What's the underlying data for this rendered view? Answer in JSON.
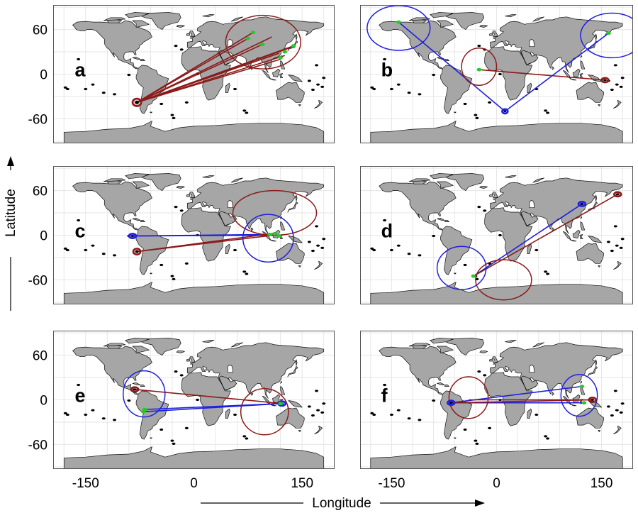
{
  "figure": {
    "x_axis_title": "Longitude",
    "y_axis_title": "Latitude",
    "x_tick_labels": [
      "-150",
      "0",
      "150"
    ],
    "y_tick_labels": [
      "60",
      "0",
      "-60"
    ],
    "x_ticks": [
      -150,
      0,
      150
    ],
    "y_ticks": [
      60,
      0,
      -60
    ],
    "colors": {
      "land": "#a6a6a6",
      "ocean": "#ffffff",
      "grid": "#e6e6e6",
      "link_red": "#8b1a1a",
      "link_blue": "#1f1fe0",
      "source_green": "#22cc22",
      "island_black": "#000000"
    }
  },
  "panels": [
    {
      "id": "a",
      "label": "a",
      "circles": [
        {
          "lon": 96,
          "lat": 43,
          "rlon": 52,
          "rlat": 36,
          "color": "red"
        },
        {
          "lon": -79,
          "lat": -38,
          "rlon": 6,
          "rlat": 5,
          "color": "red",
          "thick": true
        }
      ],
      "links": [
        {
          "from": [
            -79,
            -38
          ],
          "to": [
            82,
            56
          ],
          "color": "red"
        },
        {
          "from": [
            -79,
            -38
          ],
          "to": [
            75,
            48
          ],
          "color": "red"
        },
        {
          "from": [
            -79,
            -38
          ],
          "to": [
            95,
            40
          ],
          "color": "red"
        },
        {
          "from": [
            -79,
            -38
          ],
          "to": [
            118,
            28
          ],
          "color": "red"
        },
        {
          "from": [
            -79,
            -38
          ],
          "to": [
            120,
            20
          ],
          "color": "red"
        },
        {
          "from": [
            -79,
            -38
          ],
          "to": [
            126,
            25
          ],
          "color": "red"
        },
        {
          "from": [
            -79,
            -38
          ],
          "to": [
            132,
            35
          ],
          "color": "red"
        },
        {
          "from": [
            -79,
            -38
          ],
          "to": [
            138,
            38
          ],
          "color": "red"
        },
        {
          "from": [
            -79,
            -38
          ],
          "to": [
            108,
            50
          ],
          "color": "red"
        }
      ],
      "sources": [
        [
          82,
          56
        ],
        [
          95,
          40
        ],
        [
          120,
          22
        ],
        [
          126,
          30
        ],
        [
          138,
          38
        ],
        [
          75,
          48
        ]
      ]
    },
    {
      "id": "b",
      "label": "b",
      "circles": [
        {
          "lon": -140,
          "lat": 62,
          "rlon": 45,
          "rlat": 30,
          "color": "blue"
        },
        {
          "lon": 165,
          "lat": 52,
          "rlon": 45,
          "rlat": 30,
          "color": "blue"
        },
        {
          "lon": -25,
          "lat": 10,
          "rlon": 25,
          "rlat": 25,
          "color": "red"
        },
        {
          "lon": 12,
          "lat": -50,
          "rlon": 4,
          "rlat": 3,
          "color": "blue",
          "thick": true
        },
        {
          "lon": 155,
          "lat": -8,
          "rlon": 5,
          "rlat": 3,
          "color": "red",
          "thick": true
        }
      ],
      "links": [
        {
          "from": [
            12,
            -50
          ],
          "to": [
            -140,
            70
          ],
          "color": "blue"
        },
        {
          "from": [
            12,
            -50
          ],
          "to": [
            160,
            55
          ],
          "color": "blue"
        },
        {
          "from": [
            155,
            -8
          ],
          "to": [
            -25,
            6
          ],
          "color": "red"
        }
      ],
      "sources": [
        [
          -140,
          70
        ],
        [
          160,
          55
        ],
        [
          -25,
          6
        ]
      ]
    },
    {
      "id": "c",
      "label": "c",
      "circles": [
        {
          "lon": 112,
          "lat": 30,
          "rlon": 58,
          "rlat": 30,
          "color": "red"
        },
        {
          "lon": 103,
          "lat": -4,
          "rlon": 35,
          "rlat": 32,
          "color": "blue"
        },
        {
          "lon": -85,
          "lat": -1,
          "rlon": 5,
          "rlat": 3,
          "color": "blue",
          "thick": true
        },
        {
          "lon": -79,
          "lat": -22,
          "rlon": 5,
          "rlat": 4,
          "color": "red",
          "thick": true
        }
      ],
      "links": [
        {
          "from": [
            -85,
            -1
          ],
          "to": [
            105,
            1
          ],
          "color": "blue"
        },
        {
          "from": [
            -85,
            -1
          ],
          "to": [
            120,
            0
          ],
          "color": "blue"
        },
        {
          "from": [
            -79,
            -22
          ],
          "to": [
            115,
            3
          ],
          "color": "red"
        },
        {
          "from": [
            -79,
            -22
          ],
          "to": [
            110,
            0
          ],
          "color": "red"
        }
      ],
      "sources": [
        [
          105,
          1
        ],
        [
          118,
          -1
        ],
        [
          112,
          2
        ]
      ]
    },
    {
      "id": "d",
      "label": "d",
      "circles": [
        {
          "lon": -50,
          "lat": -44,
          "rlon": 35,
          "rlat": 29,
          "color": "blue"
        },
        {
          "lon": 10,
          "lat": -60,
          "rlon": 40,
          "rlat": 27,
          "color": "red"
        },
        {
          "lon": 122,
          "lat": 42,
          "rlon": 5,
          "rlat": 3,
          "color": "blue",
          "thick": true
        },
        {
          "lon": 173,
          "lat": 55,
          "rlon": 5,
          "rlat": 3,
          "color": "red",
          "thick": true
        }
      ],
      "links": [
        {
          "from": [
            122,
            42
          ],
          "to": [
            -33,
            -55
          ],
          "color": "blue"
        },
        {
          "from": [
            173,
            55
          ],
          "to": [
            -33,
            -55
          ],
          "color": "red"
        }
      ],
      "sources": [
        [
          -33,
          -55
        ]
      ]
    },
    {
      "id": "e",
      "label": "e",
      "circles": [
        {
          "lon": -69,
          "lat": 8,
          "rlon": 29,
          "rlat": 31,
          "color": "blue"
        },
        {
          "lon": 98,
          "lat": -16,
          "rlon": 33,
          "rlat": 31,
          "color": "red"
        },
        {
          "lon": -82,
          "lat": 14,
          "rlon": 5,
          "rlat": 3,
          "color": "red",
          "thick": true
        },
        {
          "lon": 122,
          "lat": -5,
          "rlon": 5,
          "rlat": 3,
          "color": "blue",
          "thick": true
        }
      ],
      "links": [
        {
          "from": [
            -82,
            14
          ],
          "to": [
            122,
            -5
          ],
          "color": "red"
        },
        {
          "from": [
            122,
            -5
          ],
          "to": [
            -68,
            -13
          ],
          "color": "blue"
        },
        {
          "from": [
            122,
            -5
          ],
          "to": [
            -70,
            -16
          ],
          "color": "blue"
        }
      ],
      "sources": [
        [
          -68,
          -13
        ],
        [
          -70,
          -16
        ],
        [
          120,
          -5
        ]
      ]
    },
    {
      "id": "f",
      "label": "f",
      "circles": [
        {
          "lon": -40,
          "lat": 3,
          "rlon": 28,
          "rlat": 28,
          "color": "red"
        },
        {
          "lon": 118,
          "lat": 6,
          "rlon": 26,
          "rlat": 28,
          "color": "blue"
        },
        {
          "lon": -65,
          "lat": -4,
          "rlon": 5,
          "rlat": 3,
          "color": "blue",
          "thick": true
        },
        {
          "lon": 137,
          "lat": 0,
          "rlon": 5,
          "rlat": 3,
          "color": "red",
          "thick": true
        }
      ],
      "links": [
        {
          "from": [
            -65,
            -4
          ],
          "to": [
            122,
            18
          ],
          "color": "blue"
        },
        {
          "from": [
            -65,
            -4
          ],
          "to": [
            125,
            -4
          ],
          "color": "blue"
        },
        {
          "from": [
            137,
            0
          ],
          "to": [
            -65,
            -4
          ],
          "color": "red"
        },
        {
          "from": [
            137,
            0
          ],
          "to": [
            -40,
            0
          ],
          "color": "red"
        }
      ],
      "sources": [
        [
          122,
          18
        ],
        [
          125,
          -4
        ]
      ]
    }
  ]
}
